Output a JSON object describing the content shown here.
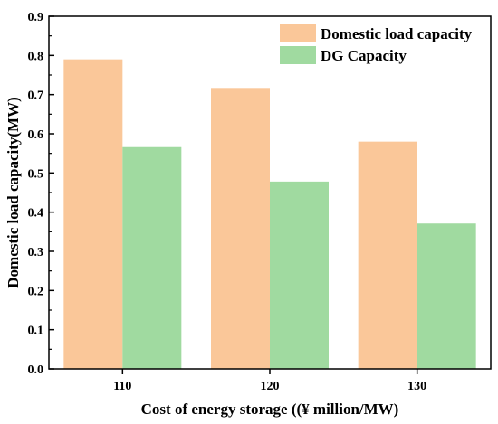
{
  "chart_data": {
    "type": "bar",
    "categories": [
      "110",
      "120",
      "130"
    ],
    "series": [
      {
        "name": "Domestic load capacity",
        "values": [
          0.79,
          0.717,
          0.58
        ],
        "color": "#FAC799"
      },
      {
        "name": "DG Capacity",
        "values": [
          0.566,
          0.478,
          0.371
        ],
        "color": "#A0DAA0"
      }
    ],
    "xlabel": "Cost of energy storage ((¥  million/MW)",
    "ylabel": "Domestic load capacity(MW)",
    "ylim": [
      0,
      0.9
    ],
    "yticks": [
      "0.0",
      "0.1",
      "0.2",
      "0.3",
      "0.4",
      "0.5",
      "0.6",
      "0.7",
      "0.8",
      "0.9"
    ],
    "grid": false,
    "legend_position": "top-right"
  }
}
